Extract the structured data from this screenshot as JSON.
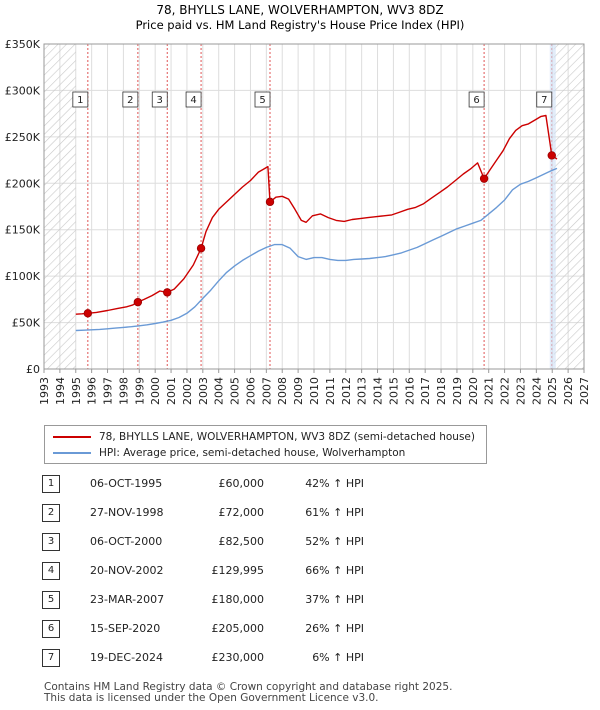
{
  "chart_data": {
    "type": "line",
    "title": "78, BHYLLS LANE, WOLVERHAMPTON, WV3 8DZ",
    "subtitle": "Price paid vs. HM Land Registry's House Price Index (HPI)",
    "xlim": [
      1993,
      2027
    ],
    "ylim": [
      0,
      350000
    ],
    "y_ticks": [
      0,
      50000,
      100000,
      150000,
      200000,
      250000,
      300000,
      350000
    ],
    "y_tick_labels": [
      "£0",
      "£50K",
      "£100K",
      "£150K",
      "£200K",
      "£250K",
      "£300K",
      "£350K"
    ],
    "x_ticks": [
      1993,
      1994,
      1995,
      1996,
      1997,
      1998,
      1999,
      2000,
      2001,
      2002,
      2003,
      2004,
      2005,
      2006,
      2007,
      2008,
      2009,
      2010,
      2011,
      2012,
      2013,
      2014,
      2015,
      2016,
      2017,
      2018,
      2019,
      2020,
      2021,
      2022,
      2023,
      2024,
      2025,
      2026,
      2027
    ],
    "x_tick_labels": [
      "1993",
      "1994",
      "1995",
      "1996",
      "1997",
      "1998",
      "1999",
      "2000",
      "2001",
      "2002",
      "2003",
      "2004",
      "2005",
      "2006",
      "2007",
      "2008",
      "2009",
      "2010",
      "2011",
      "2012",
      "2013",
      "2014",
      "2015",
      "2016",
      "2017",
      "2018",
      "2019",
      "2020",
      "2021",
      "2022",
      "2023",
      "2024",
      "2025",
      "2026",
      "2027"
    ],
    "hatch_before": 1995.0,
    "hatch_after": 2025.1,
    "series": [
      {
        "name": "78, BHYLLS LANE, WOLVERHAMPTON, WV3 8DZ (semi-detached house)",
        "color": "#cc0000",
        "points": [
          [
            1995.0,
            59000
          ],
          [
            1995.4,
            59500
          ],
          [
            1995.76,
            60000
          ],
          [
            1996.3,
            61000
          ],
          [
            1997.0,
            63000
          ],
          [
            1997.6,
            65000
          ],
          [
            1998.2,
            67000
          ],
          [
            1998.6,
            69000
          ],
          [
            1998.9,
            72000
          ],
          [
            1999.3,
            75000
          ],
          [
            1999.8,
            79000
          ],
          [
            2000.3,
            84000
          ],
          [
            2000.76,
            82500
          ],
          [
            2001.2,
            86000
          ],
          [
            2001.8,
            97000
          ],
          [
            2002.4,
            112000
          ],
          [
            2002.89,
            130000
          ],
          [
            2003.2,
            148000
          ],
          [
            2003.6,
            163000
          ],
          [
            2004.0,
            172000
          ],
          [
            2004.5,
            180000
          ],
          [
            2005.0,
            188000
          ],
          [
            2005.5,
            196000
          ],
          [
            2006.0,
            203000
          ],
          [
            2006.5,
            212000
          ],
          [
            2006.8,
            215000
          ],
          [
            2007.1,
            218000
          ],
          [
            2007.23,
            180000
          ],
          [
            2007.6,
            185000
          ],
          [
            2008.0,
            186000
          ],
          [
            2008.4,
            183000
          ],
          [
            2008.8,
            172000
          ],
          [
            2009.2,
            160000
          ],
          [
            2009.5,
            158000
          ],
          [
            2009.9,
            165000
          ],
          [
            2010.4,
            167000
          ],
          [
            2010.9,
            163000
          ],
          [
            2011.4,
            160000
          ],
          [
            2011.9,
            159000
          ],
          [
            2012.4,
            161000
          ],
          [
            2012.9,
            162000
          ],
          [
            2013.4,
            163000
          ],
          [
            2013.9,
            164000
          ],
          [
            2014.4,
            165000
          ],
          [
            2014.9,
            166000
          ],
          [
            2015.4,
            169000
          ],
          [
            2015.9,
            172000
          ],
          [
            2016.4,
            174000
          ],
          [
            2016.9,
            178000
          ],
          [
            2017.4,
            184000
          ],
          [
            2017.9,
            190000
          ],
          [
            2018.4,
            196000
          ],
          [
            2018.9,
            203000
          ],
          [
            2019.4,
            210000
          ],
          [
            2019.9,
            216000
          ],
          [
            2020.3,
            222000
          ],
          [
            2020.71,
            205000
          ],
          [
            2021.1,
            215000
          ],
          [
            2021.5,
            225000
          ],
          [
            2021.9,
            235000
          ],
          [
            2022.3,
            248000
          ],
          [
            2022.7,
            257000
          ],
          [
            2023.1,
            262000
          ],
          [
            2023.5,
            264000
          ],
          [
            2023.9,
            268000
          ],
          [
            2024.3,
            272000
          ],
          [
            2024.6,
            273000
          ],
          [
            2024.97,
            230000
          ],
          [
            2025.3,
            226000
          ]
        ]
      },
      {
        "name": "HPI: Average price, semi-detached house, Wolverhampton",
        "color": "#6a9ad6",
        "points": [
          [
            1995.0,
            41500
          ],
          [
            1995.5,
            41800
          ],
          [
            1996.0,
            42200
          ],
          [
            1996.5,
            42700
          ],
          [
            1997.0,
            43300
          ],
          [
            1997.5,
            44000
          ],
          [
            1998.0,
            44800
          ],
          [
            1998.5,
            45600
          ],
          [
            1999.0,
            46500
          ],
          [
            1999.5,
            47600
          ],
          [
            2000.0,
            49000
          ],
          [
            2000.5,
            50500
          ],
          [
            2001.0,
            52500
          ],
          [
            2001.5,
            55500
          ],
          [
            2002.0,
            60000
          ],
          [
            2002.5,
            67000
          ],
          [
            2003.0,
            76000
          ],
          [
            2003.5,
            85000
          ],
          [
            2004.0,
            95000
          ],
          [
            2004.5,
            104000
          ],
          [
            2005.0,
            111000
          ],
          [
            2005.5,
            117000
          ],
          [
            2006.0,
            122000
          ],
          [
            2006.5,
            127000
          ],
          [
            2007.0,
            131000
          ],
          [
            2007.5,
            134000
          ],
          [
            2008.0,
            134000
          ],
          [
            2008.5,
            130000
          ],
          [
            2009.0,
            121000
          ],
          [
            2009.5,
            118000
          ],
          [
            2010.0,
            120000
          ],
          [
            2010.5,
            120000
          ],
          [
            2011.0,
            118000
          ],
          [
            2011.5,
            117000
          ],
          [
            2012.0,
            117000
          ],
          [
            2012.5,
            118000
          ],
          [
            2013.0,
            118500
          ],
          [
            2013.5,
            119000
          ],
          [
            2014.0,
            120000
          ],
          [
            2014.5,
            121000
          ],
          [
            2015.0,
            123000
          ],
          [
            2015.5,
            125000
          ],
          [
            2016.0,
            128000
          ],
          [
            2016.5,
            131000
          ],
          [
            2017.0,
            135000
          ],
          [
            2017.5,
            139000
          ],
          [
            2018.0,
            143000
          ],
          [
            2018.5,
            147000
          ],
          [
            2019.0,
            151000
          ],
          [
            2019.5,
            154000
          ],
          [
            2020.0,
            157000
          ],
          [
            2020.5,
            160000
          ],
          [
            2021.0,
            167000
          ],
          [
            2021.5,
            174000
          ],
          [
            2022.0,
            182000
          ],
          [
            2022.5,
            193000
          ],
          [
            2023.0,
            199000
          ],
          [
            2023.5,
            202000
          ],
          [
            2024.0,
            206000
          ],
          [
            2024.5,
            210000
          ],
          [
            2025.0,
            214000
          ],
          [
            2025.3,
            216000
          ]
        ]
      }
    ],
    "transactions": [
      {
        "num": "1",
        "x": 1995.76,
        "price": 60000
      },
      {
        "num": "2",
        "x": 1998.91,
        "price": 72000
      },
      {
        "num": "3",
        "x": 2000.76,
        "price": 82500
      },
      {
        "num": "4",
        "x": 2002.89,
        "price": 129995
      },
      {
        "num": "5",
        "x": 2007.23,
        "price": 180000
      },
      {
        "num": "6",
        "x": 2020.71,
        "price": 205000
      },
      {
        "num": "7",
        "x": 2024.97,
        "price": 230000
      }
    ]
  },
  "legend": {
    "property_label": "78, BHYLLS LANE, WOLVERHAMPTON, WV3 8DZ (semi-detached house)",
    "hpi_label": "HPI: Average price, semi-detached house, Wolverhampton",
    "property_color": "#cc0000",
    "hpi_color": "#6a9ad6"
  },
  "table": [
    {
      "num": "1",
      "date": "06-OCT-1995",
      "price": "£60,000",
      "hpi": "42% ↑ HPI"
    },
    {
      "num": "2",
      "date": "27-NOV-1998",
      "price": "£72,000",
      "hpi": "61% ↑ HPI"
    },
    {
      "num": "3",
      "date": "06-OCT-2000",
      "price": "£82,500",
      "hpi": "52% ↑ HPI"
    },
    {
      "num": "4",
      "date": "20-NOV-2002",
      "price": "£129,995",
      "hpi": "66% ↑ HPI"
    },
    {
      "num": "5",
      "date": "23-MAR-2007",
      "price": "£180,000",
      "hpi": "37% ↑ HPI"
    },
    {
      "num": "6",
      "date": "15-SEP-2020",
      "price": "£205,000",
      "hpi": "26% ↑ HPI"
    },
    {
      "num": "7",
      "date": "19-DEC-2024",
      "price": "£230,000",
      "hpi": "6% ↑ HPI"
    }
  ],
  "footer": {
    "line1": "Contains HM Land Registry data © Crown copyright and database right 2025.",
    "line2": "This data is licensed under the Open Government Licence v3.0."
  }
}
